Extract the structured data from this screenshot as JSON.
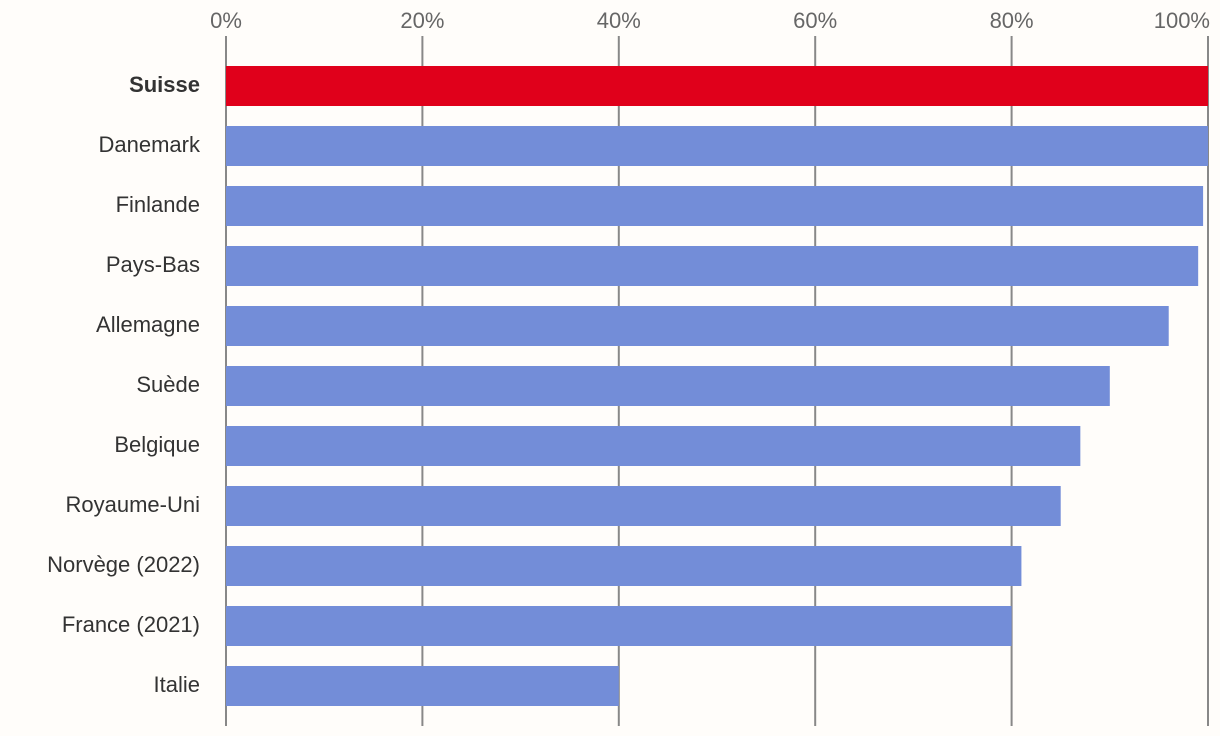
{
  "chart_data": {
    "type": "hbar",
    "categories": [
      "Suisse",
      "Danemark",
      "Finlande",
      "Pays-Bas",
      "Allemagne",
      "Suède",
      "Belgique",
      "Royaume-Uni",
      "Norvège (2022)",
      "France (2021)",
      "Italie"
    ],
    "values": [
      100,
      100,
      99.5,
      99,
      96,
      90,
      87,
      85,
      81,
      80,
      40
    ],
    "colors": [
      "#e0001b",
      "#738dd8",
      "#738dd8",
      "#738dd8",
      "#738dd8",
      "#738dd8",
      "#738dd8",
      "#738dd8",
      "#738dd8",
      "#738dd8",
      "#738dd8"
    ],
    "xlim": [
      0,
      100
    ],
    "xticks": [
      {
        "value": 0,
        "label": "0%"
      },
      {
        "value": 20,
        "label": "20%"
      },
      {
        "value": 40,
        "label": "40%"
      },
      {
        "value": 60,
        "label": "60%"
      },
      {
        "value": 80,
        "label": "80%"
      },
      {
        "value": 100,
        "label": "100%"
      }
    ],
    "grid": true
  }
}
